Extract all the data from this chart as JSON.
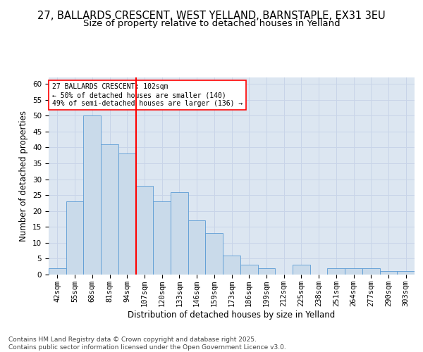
{
  "title_line1": "27, BALLARDS CRESCENT, WEST YELLAND, BARNSTAPLE, EX31 3EU",
  "title_line2": "Size of property relative to detached houses in Yelland",
  "xlabel": "Distribution of detached houses by size in Yelland",
  "ylabel": "Number of detached properties",
  "categories": [
    "42sqm",
    "55sqm",
    "68sqm",
    "81sqm",
    "94sqm",
    "107sqm",
    "120sqm",
    "133sqm",
    "146sqm",
    "159sqm",
    "173sqm",
    "186sqm",
    "199sqm",
    "212sqm",
    "225sqm",
    "238sqm",
    "251sqm",
    "264sqm",
    "277sqm",
    "290sqm",
    "303sqm"
  ],
  "values": [
    2,
    23,
    50,
    41,
    38,
    28,
    23,
    26,
    17,
    13,
    6,
    3,
    2,
    0,
    3,
    0,
    2,
    2,
    2,
    1,
    1
  ],
  "bar_color": "#c9daea",
  "bar_edge_color": "#5b9bd5",
  "grid_color": "#c8d4e8",
  "background_color": "#dce6f1",
  "red_line_x": 4.5,
  "annotation_text": "27 BALLARDS CRESCENT: 102sqm\n← 50% of detached houses are smaller (140)\n49% of semi-detached houses are larger (136) →",
  "annotation_box_color": "white",
  "annotation_box_edge_color": "red",
  "red_line_color": "red",
  "ylim": [
    0,
    62
  ],
  "yticks": [
    0,
    5,
    10,
    15,
    20,
    25,
    30,
    35,
    40,
    45,
    50,
    55,
    60
  ],
  "footer": "Contains HM Land Registry data © Crown copyright and database right 2025.\nContains public sector information licensed under the Open Government Licence v3.0.",
  "title_fontsize": 10.5,
  "subtitle_fontsize": 9.5,
  "axis_label_fontsize": 8.5,
  "tick_fontsize": 7.5,
  "annotation_fontsize": 7,
  "footer_fontsize": 6.5
}
